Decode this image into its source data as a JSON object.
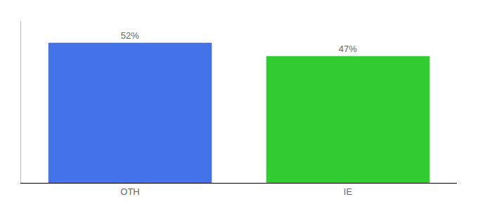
{
  "chart_data": {
    "type": "bar",
    "categories": [
      "OTH",
      "IE"
    ],
    "values": [
      52,
      47
    ],
    "value_labels": [
      "52%",
      "47%"
    ],
    "colors": [
      "#4472e8",
      "#33cc33"
    ],
    "ylim": [
      0,
      60
    ],
    "grid": false,
    "data_labels": true,
    "tick_labels": "x"
  }
}
